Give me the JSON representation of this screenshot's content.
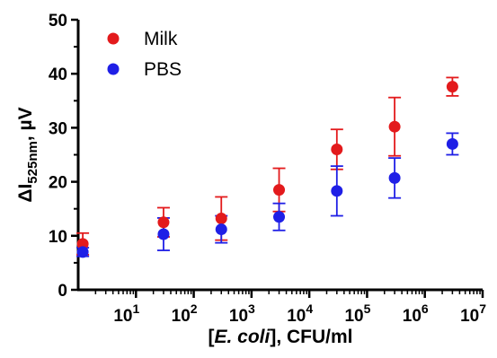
{
  "chart_data": {
    "type": "scatter",
    "x_scale": "log",
    "xlim": [
      1,
      10000000
    ],
    "ylim": [
      0,
      50
    ],
    "grid": false,
    "legend_position": "top-left",
    "y_ticks": [
      0,
      10,
      20,
      30,
      40,
      50
    ],
    "x_ticks": [
      {
        "value": 10,
        "base": "10",
        "exp": "1"
      },
      {
        "value": 100,
        "base": "10",
        "exp": "2"
      },
      {
        "value": 1000,
        "base": "10",
        "exp": "3"
      },
      {
        "value": 10000,
        "base": "10",
        "exp": "4"
      },
      {
        "value": 100000,
        "base": "10",
        "exp": "5"
      },
      {
        "value": 1000000,
        "base": "10",
        "exp": "6"
      },
      {
        "value": 10000000,
        "base": "10",
        "exp": "7"
      }
    ],
    "xlabel": {
      "pre": "[",
      "italic": "E. coli",
      "post": "], CFU/ml"
    },
    "ylabel": {
      "main": "ΔI",
      "sub": "525nm",
      "post": ", µV"
    },
    "series": [
      {
        "name": "Milk",
        "color": "#e31a1c",
        "points": [
          {
            "x": 1.2,
            "y": 8.5,
            "err": 2.0
          },
          {
            "x": 30,
            "y": 12.5,
            "err": 2.7
          },
          {
            "x": 300,
            "y": 13.2,
            "err": 4.0
          },
          {
            "x": 3000,
            "y": 18.5,
            "err": 4.0
          },
          {
            "x": 30000,
            "y": 26.0,
            "err": 3.7
          },
          {
            "x": 300000,
            "y": 30.2,
            "err": 5.4
          },
          {
            "x": 3000000,
            "y": 37.6,
            "err": 1.7
          }
        ]
      },
      {
        "name": "PBS",
        "color": "#1f1fe6",
        "points": [
          {
            "x": 1.2,
            "y": 7.0,
            "err": 0.8
          },
          {
            "x": 30,
            "y": 10.3,
            "err": 3.0
          },
          {
            "x": 300,
            "y": 11.2,
            "err": 2.5
          },
          {
            "x": 3000,
            "y": 13.5,
            "err": 2.5
          },
          {
            "x": 30000,
            "y": 18.3,
            "err": 4.6
          },
          {
            "x": 300000,
            "y": 20.7,
            "err": 3.7
          },
          {
            "x": 3000000,
            "y": 27.0,
            "err": 2.0
          }
        ]
      }
    ]
  }
}
